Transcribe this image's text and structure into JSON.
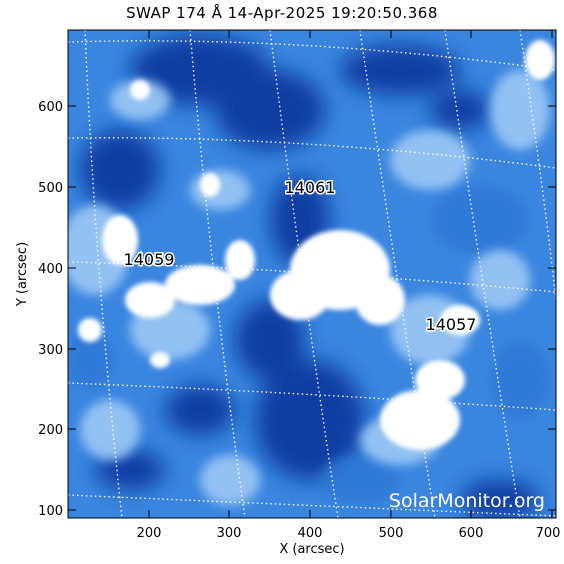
{
  "image": {
    "title": "SWAP 174 Å 14-Apr-2025 19:20:50.368",
    "colors": {
      "dark": "#0a3aa0",
      "mid": "#2f78d6",
      "light": "#9cc8f5",
      "bright": "#ffffff"
    }
  },
  "axes": {
    "xlabel": "X (arcsec)",
    "ylabel": "Y (arcsec)",
    "xlim": [
      110,
      715
    ],
    "ylim": [
      88,
      695
    ],
    "xticks": [
      "200",
      "300",
      "400",
      "500",
      "600",
      "700"
    ],
    "yticks": [
      "100",
      "200",
      "300",
      "400",
      "500",
      "600"
    ]
  },
  "regions": [
    {
      "label": "14061",
      "x": 410,
      "y": 495
    },
    {
      "label": "14059",
      "x": 210,
      "y": 407
    },
    {
      "label": "14057",
      "x": 587,
      "y": 324
    }
  ],
  "watermark": "SolarMonitor.org"
}
